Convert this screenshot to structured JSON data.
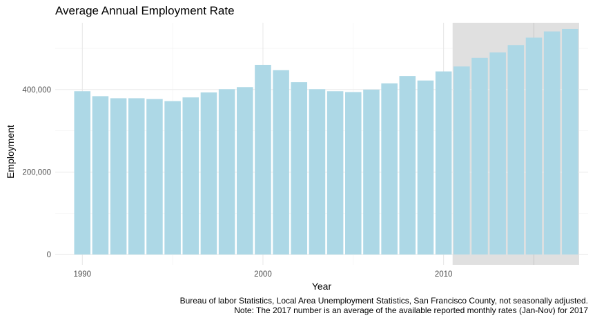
{
  "chart_data": {
    "type": "bar",
    "title": "Average Annual Employment Rate",
    "xlabel": "Year",
    "ylabel": "Employment",
    "x": [
      1990,
      1991,
      1992,
      1993,
      1994,
      1995,
      1996,
      1997,
      1998,
      1999,
      2000,
      2001,
      2002,
      2003,
      2004,
      2005,
      2006,
      2007,
      2008,
      2009,
      2010,
      2011,
      2012,
      2013,
      2014,
      2015,
      2016,
      2017
    ],
    "values": [
      396000,
      384000,
      379000,
      379000,
      377000,
      372000,
      381000,
      393000,
      401000,
      406000,
      460000,
      447000,
      418000,
      401000,
      396000,
      394000,
      400000,
      415000,
      433000,
      422000,
      444000,
      456000,
      477000,
      490000,
      508000,
      526000,
      541000,
      547000
    ],
    "xlim": [
      1988.5,
      2018
    ],
    "ylim": [
      -25000,
      562000
    ],
    "xticks": [
      1990,
      2000,
      2010
    ],
    "xtick_labels": [
      "1990",
      "2000",
      "2010"
    ],
    "yticks": [
      0,
      200000,
      400000
    ],
    "ytick_labels": [
      "0",
      "200,000",
      "400,000"
    ],
    "grid": true,
    "bar_color": "#add8e6",
    "highlight_region": {
      "x_start": 2010.5,
      "x_end": 2017.5,
      "color": "#e0e0e0"
    },
    "caption_lines": [
      "Bureau of labor Statistics, Local Area Unemployment Statistics, San Francisco County, not seasonally adjusted.",
      "Note: The 2017 number is an average of the available reported monthly rates (Jan-Nov) for 2017"
    ]
  }
}
